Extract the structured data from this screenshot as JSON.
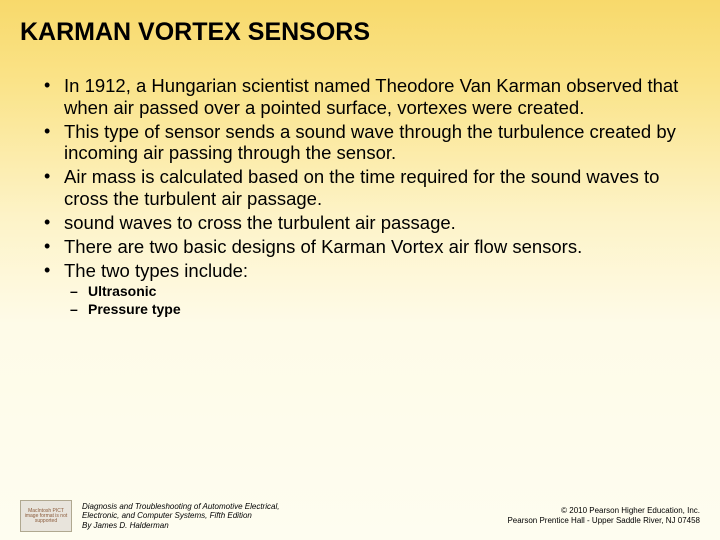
{
  "title": "KARMAN VORTEX SENSORS",
  "bullets": [
    "In 1912, a Hungarian scientist named Theodore Van Karman observed that when air passed over a pointed surface, vortexes were created.",
    "This type of sensor sends a sound wave through the turbulence created by incoming air passing through the sensor.",
    "Air mass is calculated based on the time required for the sound waves to cross the turbulent air passage.",
    "sound waves to cross the turbulent air passage.",
    "There are two basic designs of Karman Vortex air flow sensors.",
    "The two types include:"
  ],
  "sub_bullets": [
    "Ultrasonic",
    "Pressure type"
  ],
  "footer": {
    "icon_text": "MacIntosh PICT image format is not supported",
    "left_line1": "Diagnosis and Troubleshooting of Automotive Electrical,",
    "left_line2": "Electronic, and Computer Systems, Fifth Edition",
    "left_line3": "By James D. Halderman",
    "right_line1": "© 2010 Pearson Higher Education, Inc.",
    "right_line2": "Pearson Prentice Hall - Upper Saddle River, NJ 07458"
  },
  "colors": {
    "gradient_top": "#f8d96b",
    "gradient_bottom": "#fefdf0",
    "text": "#000000"
  }
}
